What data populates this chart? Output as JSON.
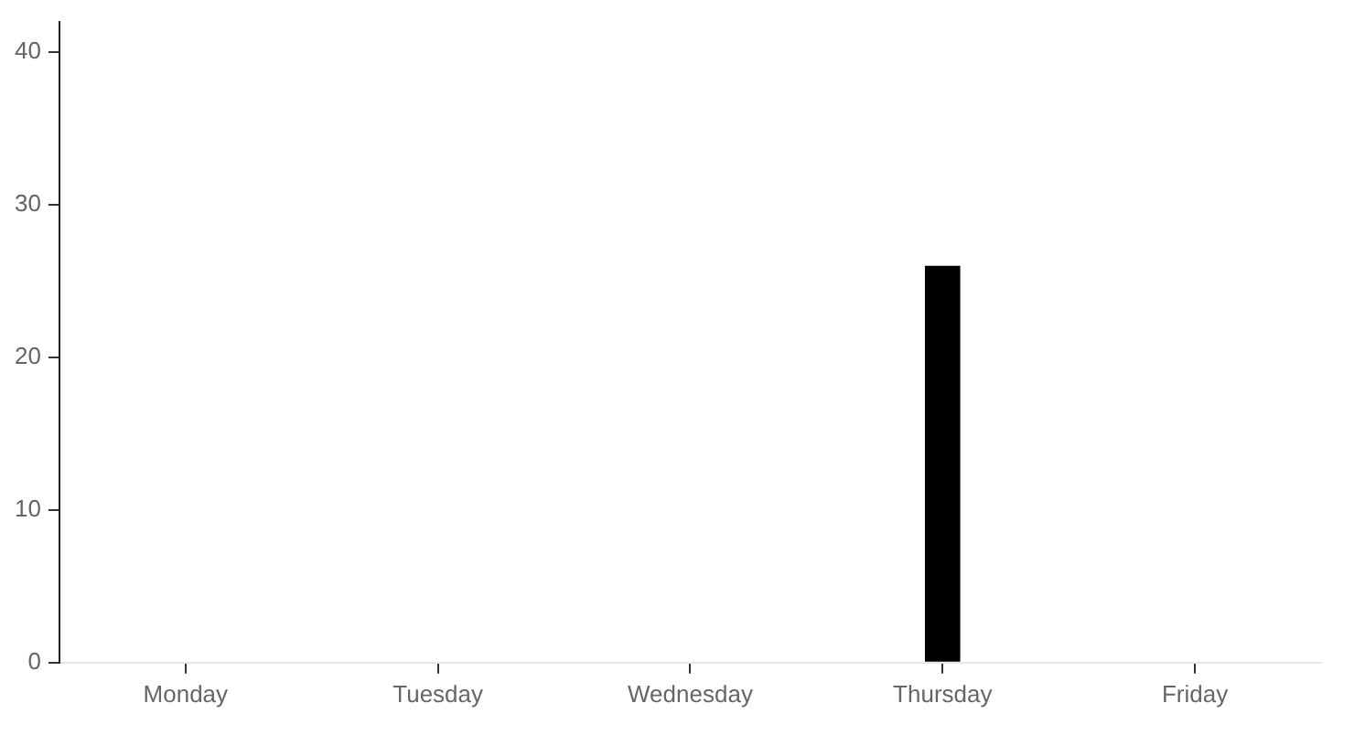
{
  "chart_data": {
    "type": "bar",
    "categories": [
      "Monday",
      "Tuesday",
      "Wednesday",
      "Thursday",
      "Friday"
    ],
    "values": [
      null,
      null,
      null,
      26,
      null
    ],
    "color": "#000000",
    "ylim": [
      0,
      42
    ],
    "yticks": [
      0,
      10,
      20,
      30,
      40
    ],
    "grid": false
  }
}
